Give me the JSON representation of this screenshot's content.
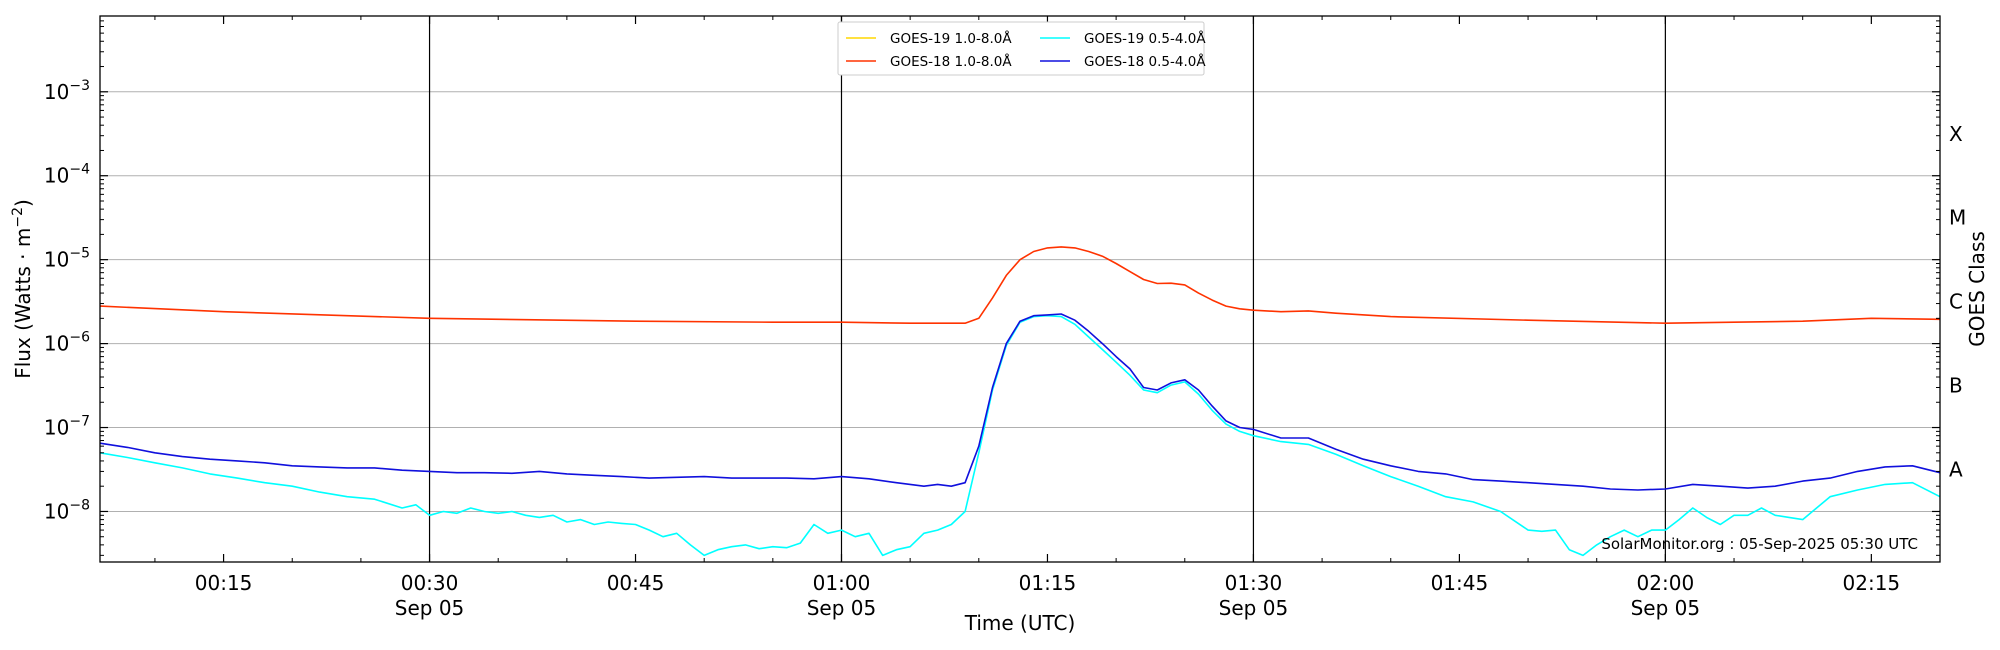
{
  "chart_data": {
    "type": "line",
    "xlabel": "Time (UTC)",
    "ylabel_main": "Flux (Watts · m",
    "ylabel_sup": "−2",
    "ylabel_close": ")",
    "y2label": "GOES Class",
    "yscale": "log",
    "ylim": [
      2.5e-09,
      0.008
    ],
    "xlim": [
      "00:06",
      "02:20"
    ],
    "x_ticks": [
      {
        "t": 15,
        "label": "00:15",
        "date": ""
      },
      {
        "t": 30,
        "label": "00:30",
        "date": "Sep 05"
      },
      {
        "t": 45,
        "label": "00:45",
        "date": ""
      },
      {
        "t": 60,
        "label": "01:00",
        "date": "Sep 05"
      },
      {
        "t": 75,
        "label": "01:15",
        "date": ""
      },
      {
        "t": 90,
        "label": "01:30",
        "date": "Sep 05"
      },
      {
        "t": 105,
        "label": "01:45",
        "date": ""
      },
      {
        "t": 120,
        "label": "02:00",
        "date": "Sep 05"
      },
      {
        "t": 135,
        "label": "02:15",
        "date": ""
      }
    ],
    "vlines": [
      "00:30",
      "01:00",
      "01:30",
      "02:00"
    ],
    "y_ticks": [
      {
        "v": 1e-08,
        "base": "10",
        "exp": "−8"
      },
      {
        "v": 1e-07,
        "base": "10",
        "exp": "−7"
      },
      {
        "v": 1e-06,
        "base": "10",
        "exp": "−6"
      },
      {
        "v": 1e-05,
        "base": "10",
        "exp": "−5"
      },
      {
        "v": 0.0001,
        "base": "10",
        "exp": "−4"
      },
      {
        "v": 0.001,
        "base": "10",
        "exp": "−3"
      }
    ],
    "goes_classes": [
      {
        "label": "A",
        "v": 3.16e-08
      },
      {
        "label": "B",
        "v": 3.16e-07
      },
      {
        "label": "C",
        "v": 3.16e-06
      },
      {
        "label": "M",
        "v": 3.16e-05
      },
      {
        "label": "X",
        "v": 0.000316
      }
    ],
    "grid": "horizontal",
    "legend_placement": "top-center",
    "credit": "SolarMonitor.org : 05-Sep-2025 05:30 UTC",
    "series": [
      {
        "name": "GOES-19 1.0-8.0Å",
        "color": "#FFD700",
        "x": [],
        "y": []
      },
      {
        "name": "GOES-19 0.5-4.0Å",
        "color": "#00FFFF",
        "x": [
          "00:06",
          "00:08",
          "00:10",
          "00:12",
          "00:14",
          "00:16",
          "00:18",
          "00:20",
          "00:22",
          "00:24",
          "00:26",
          "00:28",
          "00:29",
          "00:30",
          "00:31",
          "00:32",
          "00:33",
          "00:34",
          "00:35",
          "00:36",
          "00:37",
          "00:38",
          "00:39",
          "00:40",
          "00:41",
          "00:42",
          "00:43",
          "00:44",
          "00:45",
          "00:46",
          "00:47",
          "00:48",
          "00:49",
          "00:50",
          "00:51",
          "00:52",
          "00:53",
          "00:54",
          "00:55",
          "00:56",
          "00:57",
          "00:58",
          "00:59",
          "01:00",
          "01:01",
          "01:02",
          "01:03",
          "01:04",
          "01:05",
          "01:06",
          "01:07",
          "01:08",
          "01:09",
          "01:10",
          "01:11",
          "01:12",
          "01:13",
          "01:14",
          "01:15",
          "01:16",
          "01:17",
          "01:18",
          "01:19",
          "01:20",
          "01:21",
          "01:22",
          "01:23",
          "01:24",
          "01:25",
          "01:26",
          "01:27",
          "01:28",
          "01:29",
          "01:30",
          "01:32",
          "01:34",
          "01:36",
          "01:38",
          "01:40",
          "01:42",
          "01:44",
          "01:46",
          "01:48",
          "01:50",
          "01:51",
          "01:52",
          "01:53",
          "01:54",
          "01:55",
          "01:56",
          "01:57",
          "01:58",
          "01:59",
          "02:00",
          "02:01",
          "02:02",
          "02:03",
          "02:04",
          "02:05",
          "02:06",
          "02:07",
          "02:08",
          "02:09",
          "02:10",
          "02:12",
          "02:14",
          "02:16",
          "02:18",
          "02:20"
        ],
        "y": [
          5e-08,
          4.4e-08,
          3.8e-08,
          3.3e-08,
          2.8e-08,
          2.5e-08,
          2.2e-08,
          2e-08,
          1.7e-08,
          1.5e-08,
          1.4e-08,
          1.1e-08,
          1.2e-08,
          9e-09,
          1e-08,
          9.5e-09,
          1.1e-08,
          1e-08,
          9.5e-09,
          1e-08,
          9e-09,
          8.5e-09,
          9e-09,
          7.5e-09,
          8e-09,
          7e-09,
          7.5e-09,
          7.2e-09,
          7e-09,
          6e-09,
          5e-09,
          5.5e-09,
          4e-09,
          3e-09,
          3.5e-09,
          3.8e-09,
          4e-09,
          3.6e-09,
          3.8e-09,
          3.7e-09,
          4.2e-09,
          7e-09,
          5.5e-09,
          6e-09,
          5e-09,
          5.5e-09,
          3e-09,
          3.5e-09,
          3.8e-09,
          5.5e-09,
          6e-09,
          7e-09,
          1e-08,
          5e-08,
          2.8e-07,
          9.5e-07,
          1.8e-06,
          2.1e-06,
          2.15e-06,
          2.1e-06,
          1.7e-06,
          1.2e-06,
          8.5e-07,
          6e-07,
          4.2e-07,
          2.8e-07,
          2.6e-07,
          3.2e-07,
          3.5e-07,
          2.5e-07,
          1.6e-07,
          1.1e-07,
          9e-08,
          8e-08,
          6.8e-08,
          6.3e-08,
          4.8e-08,
          3.5e-08,
          2.6e-08,
          2e-08,
          1.5e-08,
          1.3e-08,
          1e-08,
          6e-09,
          5.8e-09,
          6e-09,
          3.5e-09,
          3e-09,
          4e-09,
          5e-09,
          6e-09,
          5e-09,
          6e-09,
          6e-09,
          8e-09,
          1.1e-08,
          8.5e-09,
          7e-09,
          9e-09,
          9e-09,
          1.1e-08,
          9e-09,
          8.5e-09,
          8e-09,
          1.5e-08,
          1.8e-08,
          2.1e-08,
          2.2e-08,
          1.5e-08
        ]
      },
      {
        "name": "GOES-18 1.0-8.0Å",
        "color": "#FF3300",
        "x": [
          "00:06",
          "00:15",
          "00:30",
          "00:45",
          "00:55",
          "01:00",
          "01:05",
          "01:09",
          "01:10",
          "01:11",
          "01:12",
          "01:13",
          "01:14",
          "01:15",
          "01:16",
          "01:17",
          "01:18",
          "01:19",
          "01:20",
          "01:21",
          "01:22",
          "01:23",
          "01:24",
          "01:25",
          "01:26",
          "01:27",
          "01:28",
          "01:29",
          "01:30",
          "01:32",
          "01:34",
          "01:36",
          "01:40",
          "01:50",
          "02:00",
          "02:05",
          "02:10",
          "02:15",
          "02:20"
        ],
        "y": [
          2.8e-06,
          2.4e-06,
          2e-06,
          1.85e-06,
          1.8e-06,
          1.8e-06,
          1.75e-06,
          1.75e-06,
          2e-06,
          3.5e-06,
          6.5e-06,
          1e-05,
          1.25e-05,
          1.38e-05,
          1.42e-05,
          1.38e-05,
          1.25e-05,
          1.1e-05,
          9e-06,
          7.2e-06,
          5.8e-06,
          5.2e-06,
          5.25e-06,
          5e-06,
          4e-06,
          3.3e-06,
          2.8e-06,
          2.6e-06,
          2.5e-06,
          2.4e-06,
          2.45e-06,
          2.3e-06,
          2.1e-06,
          1.9e-06,
          1.75e-06,
          1.8e-06,
          1.85e-06,
          2e-06,
          1.95e-06
        ]
      },
      {
        "name": "GOES-18 0.5-4.0Å",
        "color": "#1010DD",
        "x": [
          "00:06",
          "00:08",
          "00:10",
          "00:12",
          "00:14",
          "00:16",
          "00:18",
          "00:20",
          "00:22",
          "00:24",
          "00:26",
          "00:28",
          "00:30",
          "00:32",
          "00:34",
          "00:36",
          "00:38",
          "00:40",
          "00:42",
          "00:44",
          "00:46",
          "00:48",
          "00:50",
          "00:52",
          "00:54",
          "00:56",
          "00:58",
          "01:00",
          "01:02",
          "01:04",
          "01:06",
          "01:07",
          "01:08",
          "01:09",
          "01:10",
          "01:11",
          "01:12",
          "01:13",
          "01:14",
          "01:15",
          "01:16",
          "01:17",
          "01:18",
          "01:19",
          "01:20",
          "01:21",
          "01:22",
          "01:23",
          "01:24",
          "01:25",
          "01:26",
          "01:27",
          "01:28",
          "01:29",
          "01:30",
          "01:32",
          "01:34",
          "01:36",
          "01:38",
          "01:40",
          "01:42",
          "01:44",
          "01:46",
          "01:48",
          "01:50",
          "01:52",
          "01:54",
          "01:56",
          "01:58",
          "02:00",
          "02:02",
          "02:04",
          "02:06",
          "02:08",
          "02:10",
          "02:12",
          "02:14",
          "02:16",
          "02:18",
          "02:20"
        ],
        "y": [
          6.5e-08,
          5.8e-08,
          5e-08,
          4.5e-08,
          4.2e-08,
          4e-08,
          3.8e-08,
          3.5e-08,
          3.4e-08,
          3.3e-08,
          3.3e-08,
          3.1e-08,
          3e-08,
          2.9e-08,
          2.9e-08,
          2.85e-08,
          3e-08,
          2.8e-08,
          2.7e-08,
          2.6e-08,
          2.5e-08,
          2.55e-08,
          2.6e-08,
          2.5e-08,
          2.5e-08,
          2.5e-08,
          2.45e-08,
          2.6e-08,
          2.45e-08,
          2.2e-08,
          2e-08,
          2.1e-08,
          2e-08,
          2.2e-08,
          6e-08,
          3e-07,
          1e-06,
          1.85e-06,
          2.15e-06,
          2.2e-06,
          2.25e-06,
          1.9e-06,
          1.4e-06,
          1e-06,
          7e-07,
          5e-07,
          3e-07,
          2.8e-07,
          3.4e-07,
          3.7e-07,
          2.8e-07,
          1.8e-07,
          1.2e-07,
          1e-07,
          9.5e-08,
          7.5e-08,
          7.5e-08,
          5.5e-08,
          4.2e-08,
          3.5e-08,
          3e-08,
          2.8e-08,
          2.4e-08,
          2.3e-08,
          2.2e-08,
          2.1e-08,
          2e-08,
          1.85e-08,
          1.8e-08,
          1.85e-08,
          2.1e-08,
          2e-08,
          1.9e-08,
          2e-08,
          2.3e-08,
          2.5e-08,
          3e-08,
          3.4e-08,
          3.5e-08,
          2.9e-08
        ]
      }
    ],
    "legend_order": [
      0,
      1,
      2,
      3
    ]
  }
}
